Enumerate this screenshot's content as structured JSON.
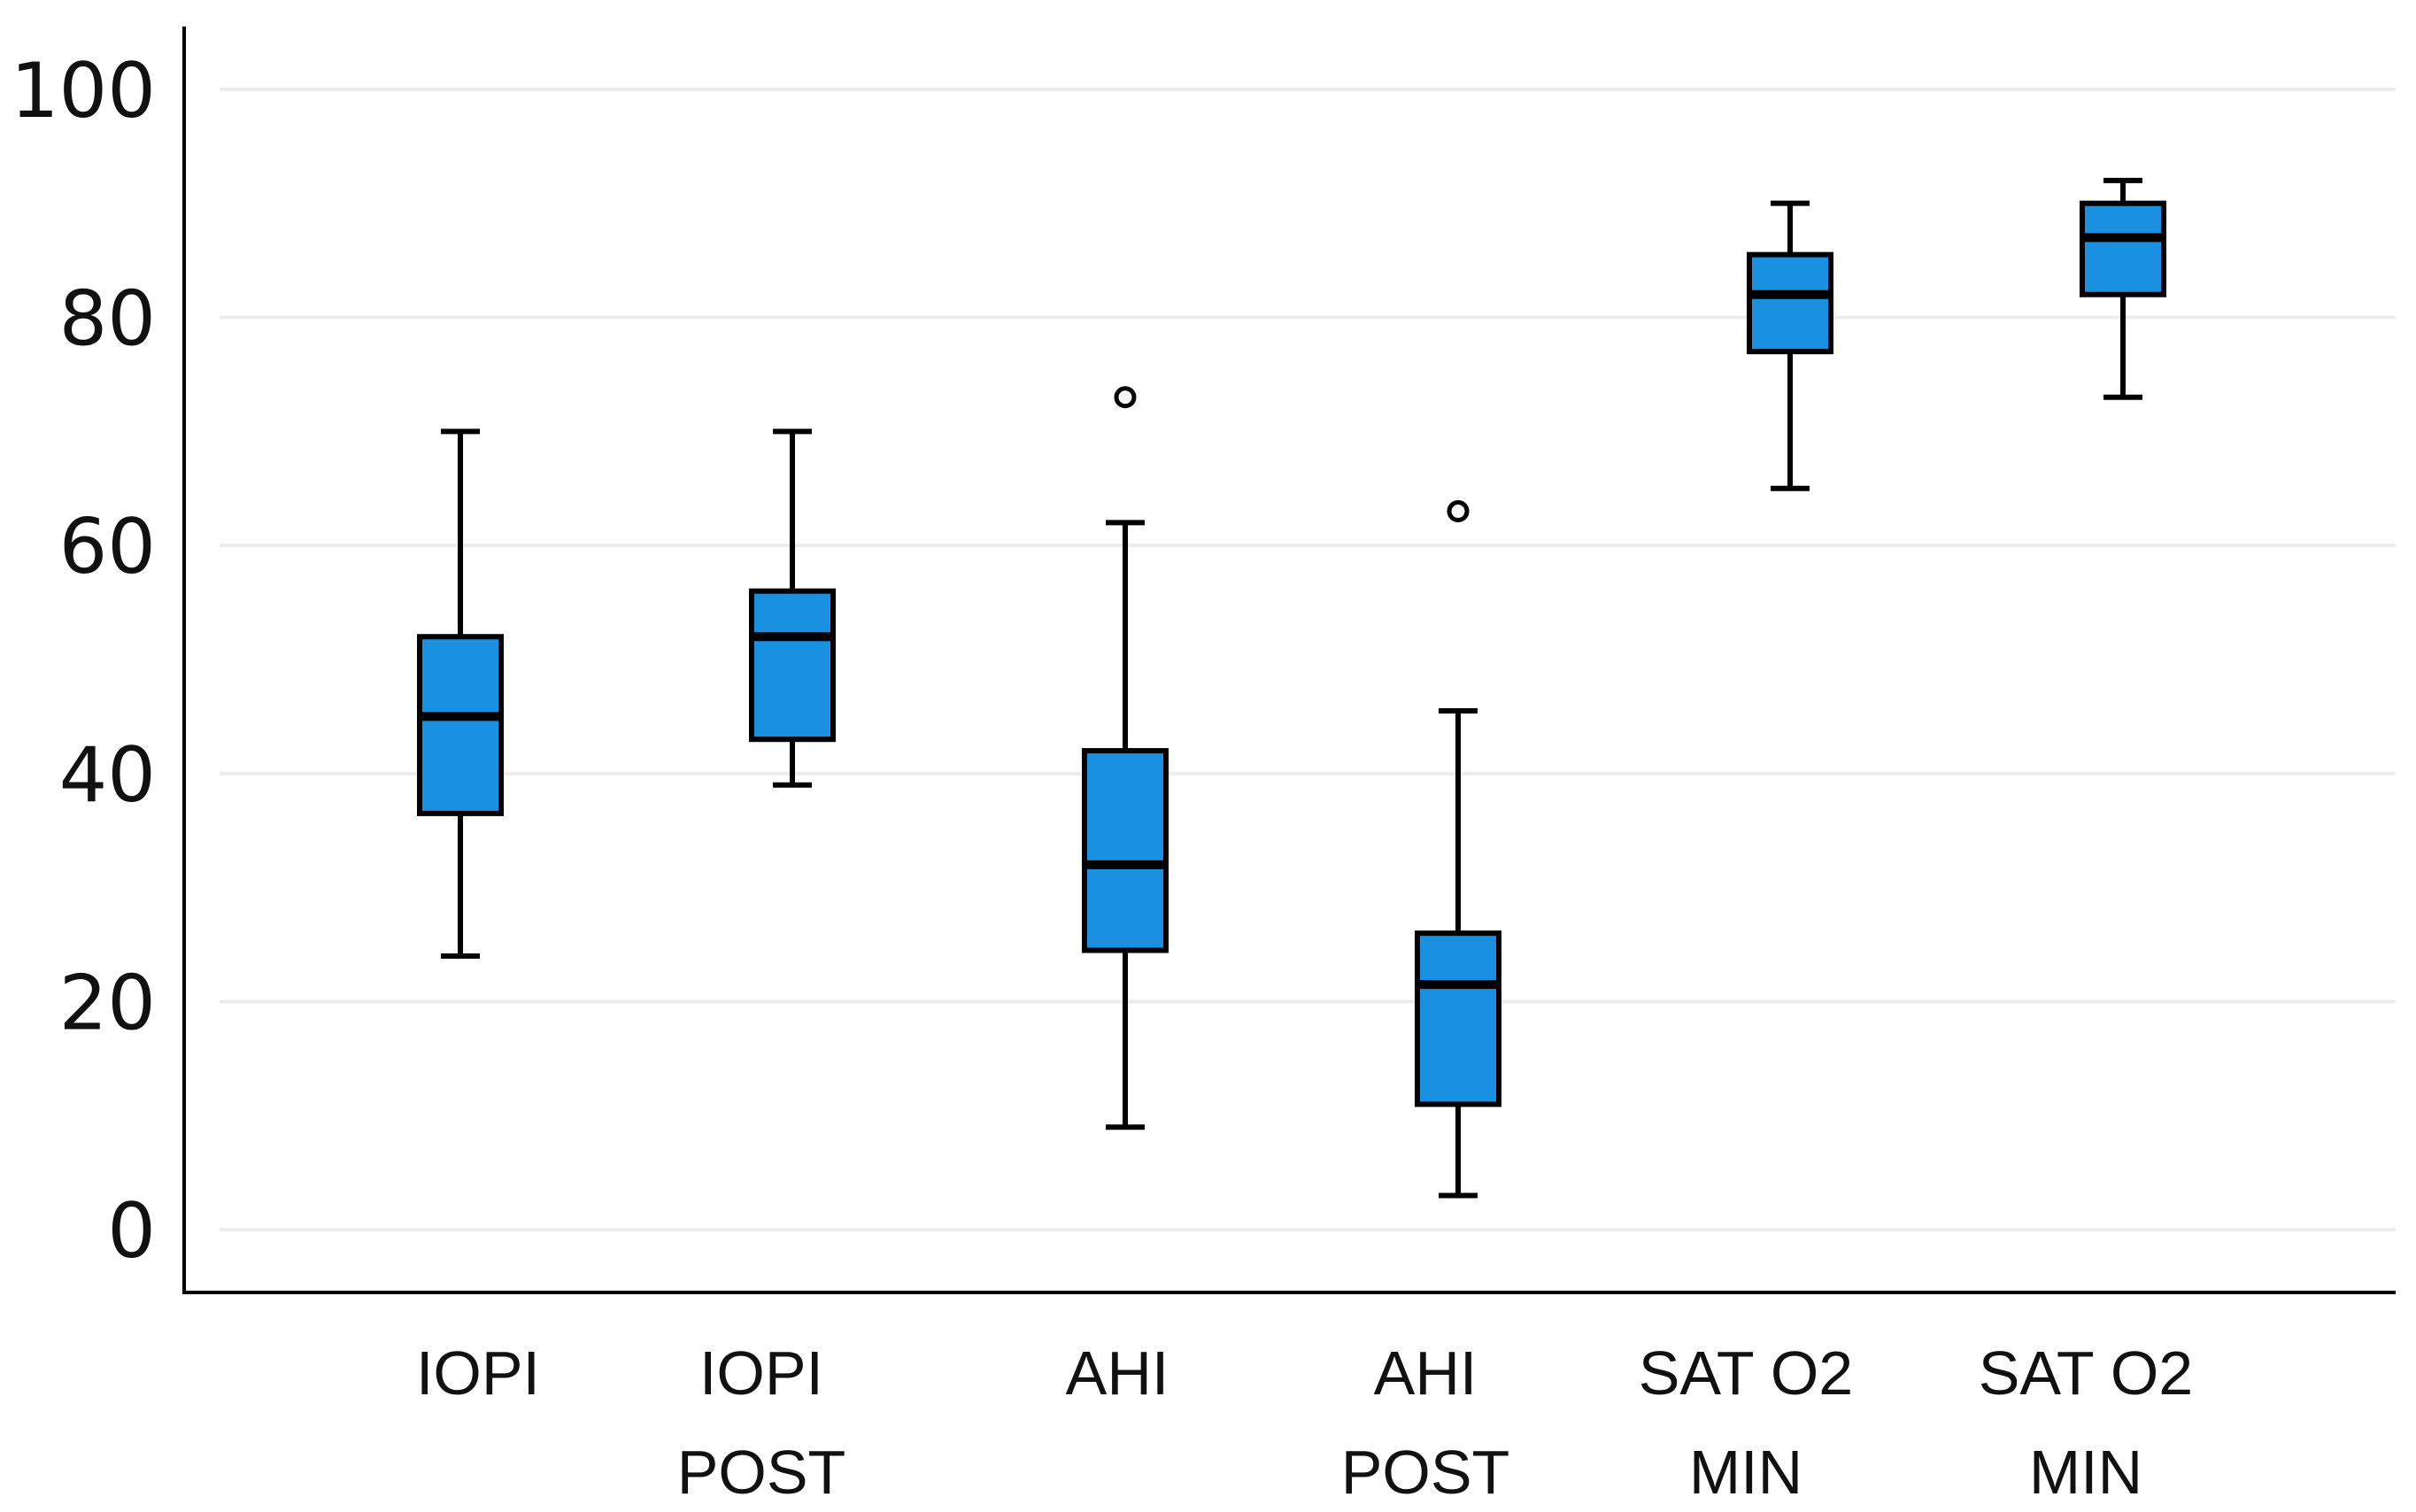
{
  "chart_data": {
    "type": "boxplot",
    "title": "",
    "xlabel": "",
    "ylabel": "",
    "ylim": [
      -5.5,
      105.5
    ],
    "yticks": [
      0,
      20,
      40,
      60,
      80,
      100
    ],
    "grid": true,
    "colors": {
      "box_fill": "#1a90e0",
      "stroke": "#000000",
      "grid": "#ececec"
    },
    "categories": [
      {
        "label_lines": [
          "IOPI"
        ],
        "min": 24,
        "q1": 36.5,
        "median": 45,
        "q3": 52,
        "max": 70,
        "outliers": []
      },
      {
        "label_lines": [
          "IOPI",
          "POST"
        ],
        "min": 39,
        "q1": 43,
        "median": 52,
        "q3": 56,
        "max": 70,
        "outliers": []
      },
      {
        "label_lines": [
          "AHI"
        ],
        "min": 9,
        "q1": 24.5,
        "median": 32,
        "q3": 42,
        "max": 62,
        "outliers": [
          73
        ]
      },
      {
        "label_lines": [
          "AHI",
          "POST"
        ],
        "min": 3,
        "q1": 11,
        "median": 21.5,
        "q3": 26,
        "max": 45.5,
        "outliers": [
          63
        ]
      },
      {
        "label_lines": [
          "SAT O2",
          "MIN"
        ],
        "min": 65,
        "q1": 77,
        "median": 82,
        "q3": 85.5,
        "max": 90,
        "outliers": []
      },
      {
        "label_lines": [
          "SAT O2",
          "MIN"
        ],
        "min": 73,
        "q1": 82,
        "median": 87,
        "q3": 90,
        "max": 92,
        "outliers": []
      }
    ]
  }
}
